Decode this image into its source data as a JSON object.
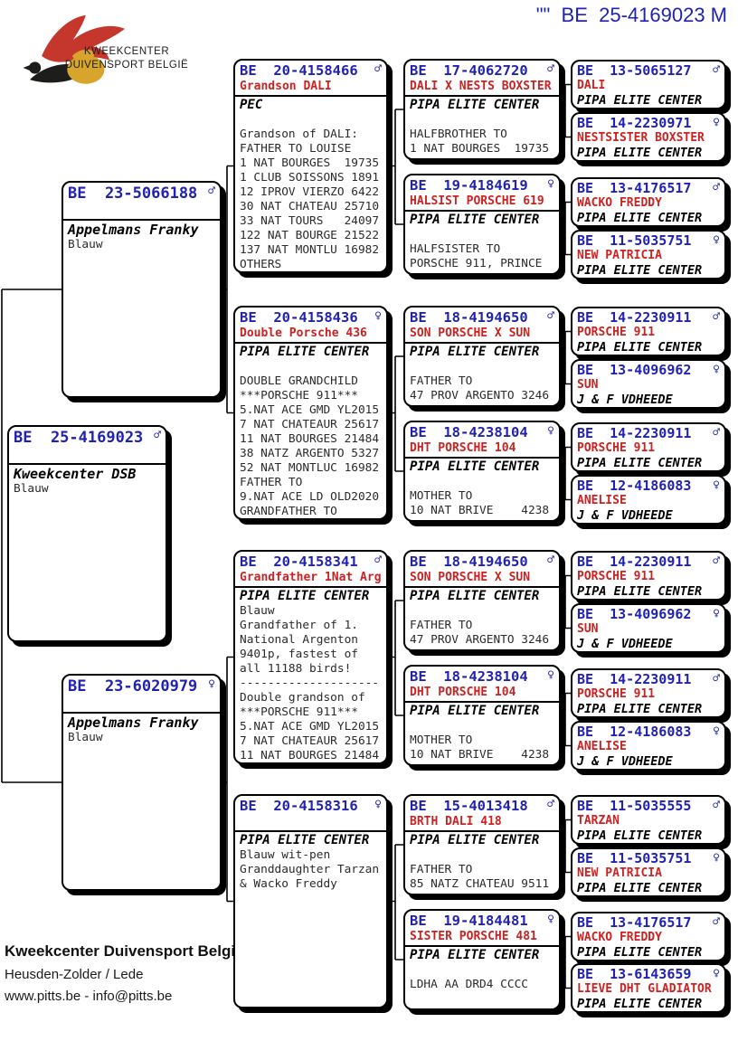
{
  "header": {
    "title": "\"\"  BE  25-4169023 M",
    "logo": {
      "line1": "KWEEKCENTER",
      "line2": "DUIVENSPORT BELGIË"
    }
  },
  "colors": {
    "ring_blue": "#2222b2",
    "name_red": "#cc2222",
    "logo_red": "#c5372c",
    "logo_yellow": "#d7a52c",
    "logo_dark": "#1d1d1b"
  },
  "sex_symbols": {
    "m": "♂",
    "f": "♀"
  },
  "pedigree": [
    {
      "gen": 1,
      "ring": "BE  25-4169023",
      "sex": "m",
      "name": "",
      "fancier": "Kweekcenter DSB",
      "body": [
        "Blauw"
      ]
    },
    {
      "gen": 2,
      "ring": "BE  23-5066188",
      "sex": "m",
      "name": "",
      "fancier": "Appelmans Franky",
      "body": [
        "Blauw"
      ]
    },
    {
      "gen": 2,
      "ring": "BE  23-6020979",
      "sex": "f",
      "name": "",
      "fancier": "Appelmans Franky",
      "body": [
        "Blauw"
      ]
    },
    {
      "gen": 3,
      "ring": "BE  20-4158466",
      "sex": "m",
      "name": "Grandson DALI",
      "fancier": "PEC",
      "body": [
        "",
        "Grandson of DALI:",
        "FATHER TO LOUISE",
        "1 NAT BOURGES  19735",
        "1 CLUB SOISSONS 1891",
        "12 IPROV VIERZO 6422",
        "30 NAT CHATEAU 25710",
        "33 NAT TOURS   24097",
        "122 NAT BOURGE 21522",
        "137 NAT MONTLU 16982",
        "OTHERS"
      ]
    },
    {
      "gen": 3,
      "ring": "BE  20-4158436",
      "sex": "f",
      "name": "Double Porsche 436",
      "fancier": "PIPA ELITE CENTER",
      "body": [
        "",
        "DOUBLE GRANDCHILD",
        "***PORSCHE 911***",
        "5.NAT ACE GMD YL2015",
        "7 NAT CHATEAUR 25617",
        "11 NAT BOURGES 21484",
        "38 NATZ ARGENTO 5327",
        "52 NAT MONTLUC 16982",
        "FATHER TO",
        "9.NAT ACE LD OLD2020",
        "GRANDFATHER TO"
      ]
    },
    {
      "gen": 3,
      "ring": "BE  20-4158341",
      "sex": "m",
      "name": "Grandfather 1Nat Arg",
      "fancier": "PIPA ELITE CENTER",
      "body": [
        "Blauw",
        "Grandfather of 1.",
        "National Argenton",
        "9401p, fastest of",
        "all 11188 birds!",
        "--------------------",
        "Double grandson of",
        "***PORSCHE 911***",
        "5.NAT ACE GMD YL2015",
        "7 NAT CHATEAUR 25617",
        "11 NAT BOURGES 21484"
      ]
    },
    {
      "gen": 3,
      "ring": "BE  20-4158316",
      "sex": "f",
      "name": "",
      "fancier": "PIPA ELITE CENTER",
      "body": [
        "Blauw wit-pen",
        "Granddaughter Tarzan",
        "& Wacko Freddy"
      ]
    },
    {
      "gen": 4,
      "ring": "BE  17-4062720",
      "sex": "m",
      "name": "DALI X NESTS BOXSTER",
      "fancier": "PIPA ELITE CENTER",
      "body": [
        "",
        "HALFBROTHER TO",
        "1 NAT BOURGES  19735"
      ]
    },
    {
      "gen": 4,
      "ring": "BE  19-4184619",
      "sex": "f",
      "name": "HALSIST PORSCHE 619",
      "fancier": "PIPA ELITE CENTER",
      "body": [
        "",
        "HALFSISTER TO",
        "PORSCHE 911, PRINCE"
      ]
    },
    {
      "gen": 4,
      "ring": "BE  18-4194650",
      "sex": "m",
      "name": "SON PORSCHE X SUN",
      "fancier": "PIPA ELITE CENTER",
      "body": [
        "",
        "FATHER TO",
        "47 PROV ARGENTO 3246"
      ]
    },
    {
      "gen": 4,
      "ring": "BE  18-4238104",
      "sex": "f",
      "name": "DHT PORSCHE 104",
      "fancier": "PIPA ELITE CENTER",
      "body": [
        "",
        "MOTHER TO",
        "10 NAT BRIVE    4238"
      ]
    },
    {
      "gen": 4,
      "ring": "BE  18-4194650",
      "sex": "m",
      "name": "SON PORSCHE X SUN",
      "fancier": "PIPA ELITE CENTER",
      "body": [
        "",
        "FATHER TO",
        "47 PROV ARGENTO 3246"
      ]
    },
    {
      "gen": 4,
      "ring": "BE  18-4238104",
      "sex": "f",
      "name": "DHT PORSCHE 104",
      "fancier": "PIPA ELITE CENTER",
      "body": [
        "",
        "MOTHER TO",
        "10 NAT BRIVE    4238"
      ]
    },
    {
      "gen": 4,
      "ring": "BE  15-4013418",
      "sex": "m",
      "name": "BRTH DALI 418",
      "fancier": "PIPA ELITE CENTER",
      "body": [
        "",
        "FATHER TO",
        "85 NATZ CHATEAU 9511"
      ]
    },
    {
      "gen": 4,
      "ring": "BE  19-4184481",
      "sex": "f",
      "name": "SISTER PORSCHE 481",
      "fancier": "PIPA ELITE CENTER",
      "body": [
        "",
        "LDHA AA DRD4 CCCC"
      ]
    },
    {
      "gen": 5,
      "ring": "BE  13-5065127",
      "sex": "m",
      "name": "DALI",
      "fancier": "PIPA ELITE CENTER",
      "body": []
    },
    {
      "gen": 5,
      "ring": "BE  14-2230971",
      "sex": "f",
      "name": "NESTSISTER BOXSTER",
      "fancier": "PIPA ELITE CENTER",
      "body": []
    },
    {
      "gen": 5,
      "ring": "BE  13-4176517",
      "sex": "m",
      "name": "WACKO FREDDY",
      "fancier": "PIPA ELITE CENTER",
      "body": []
    },
    {
      "gen": 5,
      "ring": "BE  11-5035751",
      "sex": "f",
      "name": "NEW PATRICIA",
      "fancier": "PIPA ELITE CENTER",
      "body": []
    },
    {
      "gen": 5,
      "ring": "BE  14-2230911",
      "sex": "m",
      "name": "PORSCHE 911",
      "fancier": "PIPA ELITE CENTER",
      "body": []
    },
    {
      "gen": 5,
      "ring": "BE  13-4096962",
      "sex": "f",
      "name": "SUN",
      "fancier": "J & F VDHEEDE",
      "body": []
    },
    {
      "gen": 5,
      "ring": "BE  14-2230911",
      "sex": "m",
      "name": "PORSCHE 911",
      "fancier": "PIPA ELITE CENTER",
      "body": []
    },
    {
      "gen": 5,
      "ring": "BE  12-4186083",
      "sex": "f",
      "name": "ANELISE",
      "fancier": "J & F VDHEEDE",
      "body": []
    },
    {
      "gen": 5,
      "ring": "BE  14-2230911",
      "sex": "m",
      "name": "PORSCHE 911",
      "fancier": "PIPA ELITE CENTER",
      "body": []
    },
    {
      "gen": 5,
      "ring": "BE  13-4096962",
      "sex": "f",
      "name": "SUN",
      "fancier": "J & F VDHEEDE",
      "body": []
    },
    {
      "gen": 5,
      "ring": "BE  14-2230911",
      "sex": "m",
      "name": "PORSCHE 911",
      "fancier": "PIPA ELITE CENTER",
      "body": []
    },
    {
      "gen": 5,
      "ring": "BE  12-4186083",
      "sex": "f",
      "name": "ANELISE",
      "fancier": "J & F VDHEEDE",
      "body": []
    },
    {
      "gen": 5,
      "ring": "BE  11-5035555",
      "sex": "m",
      "name": "TARZAN",
      "fancier": "PIPA ELITE CENTER",
      "body": []
    },
    {
      "gen": 5,
      "ring": "BE  11-5035751",
      "sex": "f",
      "name": "NEW PATRICIA",
      "fancier": "PIPA ELITE CENTER",
      "body": []
    },
    {
      "gen": 5,
      "ring": "BE  13-4176517",
      "sex": "m",
      "name": "WACKO FREDDY",
      "fancier": "PIPA ELITE CENTER",
      "body": []
    },
    {
      "gen": 5,
      "ring": "BE  13-6143659",
      "sex": "f",
      "name": "LIEVE DHT GLADIATOR",
      "fancier": "PIPA ELITE CENTER",
      "body": []
    }
  ],
  "footer": {
    "line1": "Kweekcenter Duivensport België",
    "line2": "Heusden-Zolder / Lede",
    "line3": "www.pitts.be - info@pitts.be"
  }
}
